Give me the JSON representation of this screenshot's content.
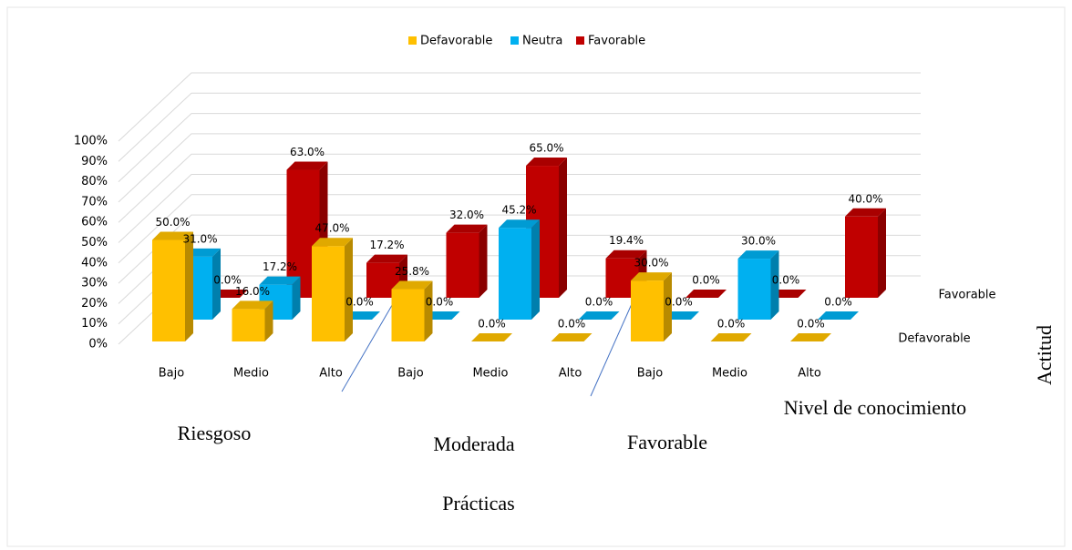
{
  "chart_data": {
    "type": "bar3d",
    "legend_position": "top",
    "categories": [
      "Bajo",
      "Medio",
      "Alto",
      "Bajo",
      "Medio",
      "Alto",
      "Bajo",
      "Medio",
      "Alto"
    ],
    "groups": [
      "Riesgoso",
      "Moderada",
      "Favorable"
    ],
    "x_label": "Prácticas",
    "x_label_inner": "Nivel de conocimiento",
    "depth_label": "Actitud",
    "depth_labels": [
      "Defavorable",
      "Favorable"
    ],
    "series": [
      {
        "name": "Defavorable",
        "color": "#ffc000",
        "values": [
          50.0,
          16.0,
          47.0,
          25.8,
          0.0,
          0.0,
          30.0,
          0.0,
          0.0
        ],
        "value_labels": [
          "50.0%",
          "16.0%",
          "47.0%",
          "25.8%",
          "0.0%",
          "0.0%",
          "30.0%",
          "0.0%",
          "0.0%"
        ]
      },
      {
        "name": "Neutra",
        "color": "#00b0f0",
        "values": [
          31.0,
          17.2,
          0.0,
          0.0,
          45.2,
          0.0,
          0.0,
          30.0,
          0.0
        ],
        "value_labels": [
          "31.0%",
          "17.2%",
          "0.0%",
          "0.0%",
          "45.2%",
          "0.0%",
          "0.0%",
          "30.0%",
          "0.0%"
        ]
      },
      {
        "name": "Favorable",
        "color": "#c00000",
        "values": [
          0.0,
          63.0,
          17.2,
          32.0,
          65.0,
          19.4,
          0.0,
          0.0,
          40.0
        ],
        "value_labels": [
          "0.0%",
          "63.0%",
          "17.2%",
          "32.0%",
          "65.0%",
          "19.4%",
          "0.0%",
          "0.0%",
          "40.0%"
        ]
      }
    ],
    "ylim": [
      0,
      100
    ],
    "yticks": [
      {
        "value": 0,
        "label": "0%"
      },
      {
        "value": 10,
        "label": "10%"
      },
      {
        "value": 20,
        "label": "20%"
      },
      {
        "value": 30,
        "label": "30%"
      },
      {
        "value": 40,
        "label": "40%"
      },
      {
        "value": 50,
        "label": "50%"
      },
      {
        "value": 60,
        "label": "60%"
      },
      {
        "value": 70,
        "label": "70%"
      },
      {
        "value": 80,
        "label": "80%"
      },
      {
        "value": 90,
        "label": "90%"
      },
      {
        "value": 100,
        "label": "100%"
      }
    ],
    "grid": true
  }
}
